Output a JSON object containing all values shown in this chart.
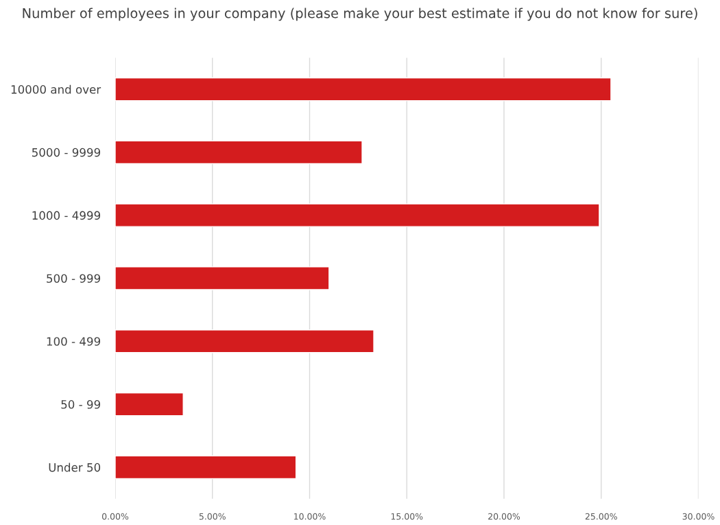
{
  "chart_data": {
    "type": "bar",
    "orientation": "horizontal",
    "title": "Number of employees in your company (please make your best estimate if you do not know for sure)",
    "categories": [
      "10000 and over",
      "5000 - 9999",
      "1000 - 4999",
      "500 - 999",
      "100 - 499",
      "50 - 99",
      "Under 50"
    ],
    "values": [
      25.5,
      12.7,
      24.9,
      11.0,
      13.3,
      3.5,
      9.3
    ],
    "color": "#d41c1e",
    "xlim": [
      0,
      30
    ],
    "xticks": [
      {
        "value": 0,
        "label": "0.00%"
      },
      {
        "value": 5,
        "label": "5.00%"
      },
      {
        "value": 10,
        "label": "10.00%"
      },
      {
        "value": 15,
        "label": "15.00%"
      },
      {
        "value": 20,
        "label": "20.00%"
      },
      {
        "value": 25,
        "label": "25.00%"
      },
      {
        "value": 30,
        "label": "30.00%"
      }
    ],
    "grid": "x",
    "legend": false
  }
}
